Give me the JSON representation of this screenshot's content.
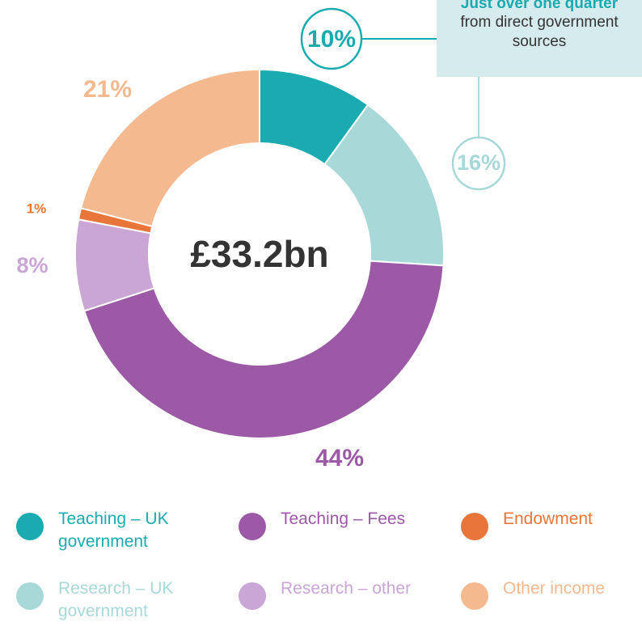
{
  "chart_data": {
    "type": "donut",
    "center_label": "£33.2bn",
    "annotation": {
      "highlight": "Just over one quarter",
      "text": "from direct government sources"
    },
    "categories": [
      "Teaching – UK government",
      "Research – UK government",
      "Teaching – Fees",
      "Research – other",
      "Endowment",
      "Other income"
    ],
    "values": [
      10,
      16,
      44,
      8,
      1,
      21
    ],
    "value_labels": [
      "10%",
      "16%",
      "44%",
      "8%",
      "1%",
      "21%"
    ],
    "colors": [
      "#1aabb0",
      "#a8d8d8",
      "#9b59a6",
      "#c9a6d4",
      "#e8763a",
      "#f5b98f"
    ]
  }
}
